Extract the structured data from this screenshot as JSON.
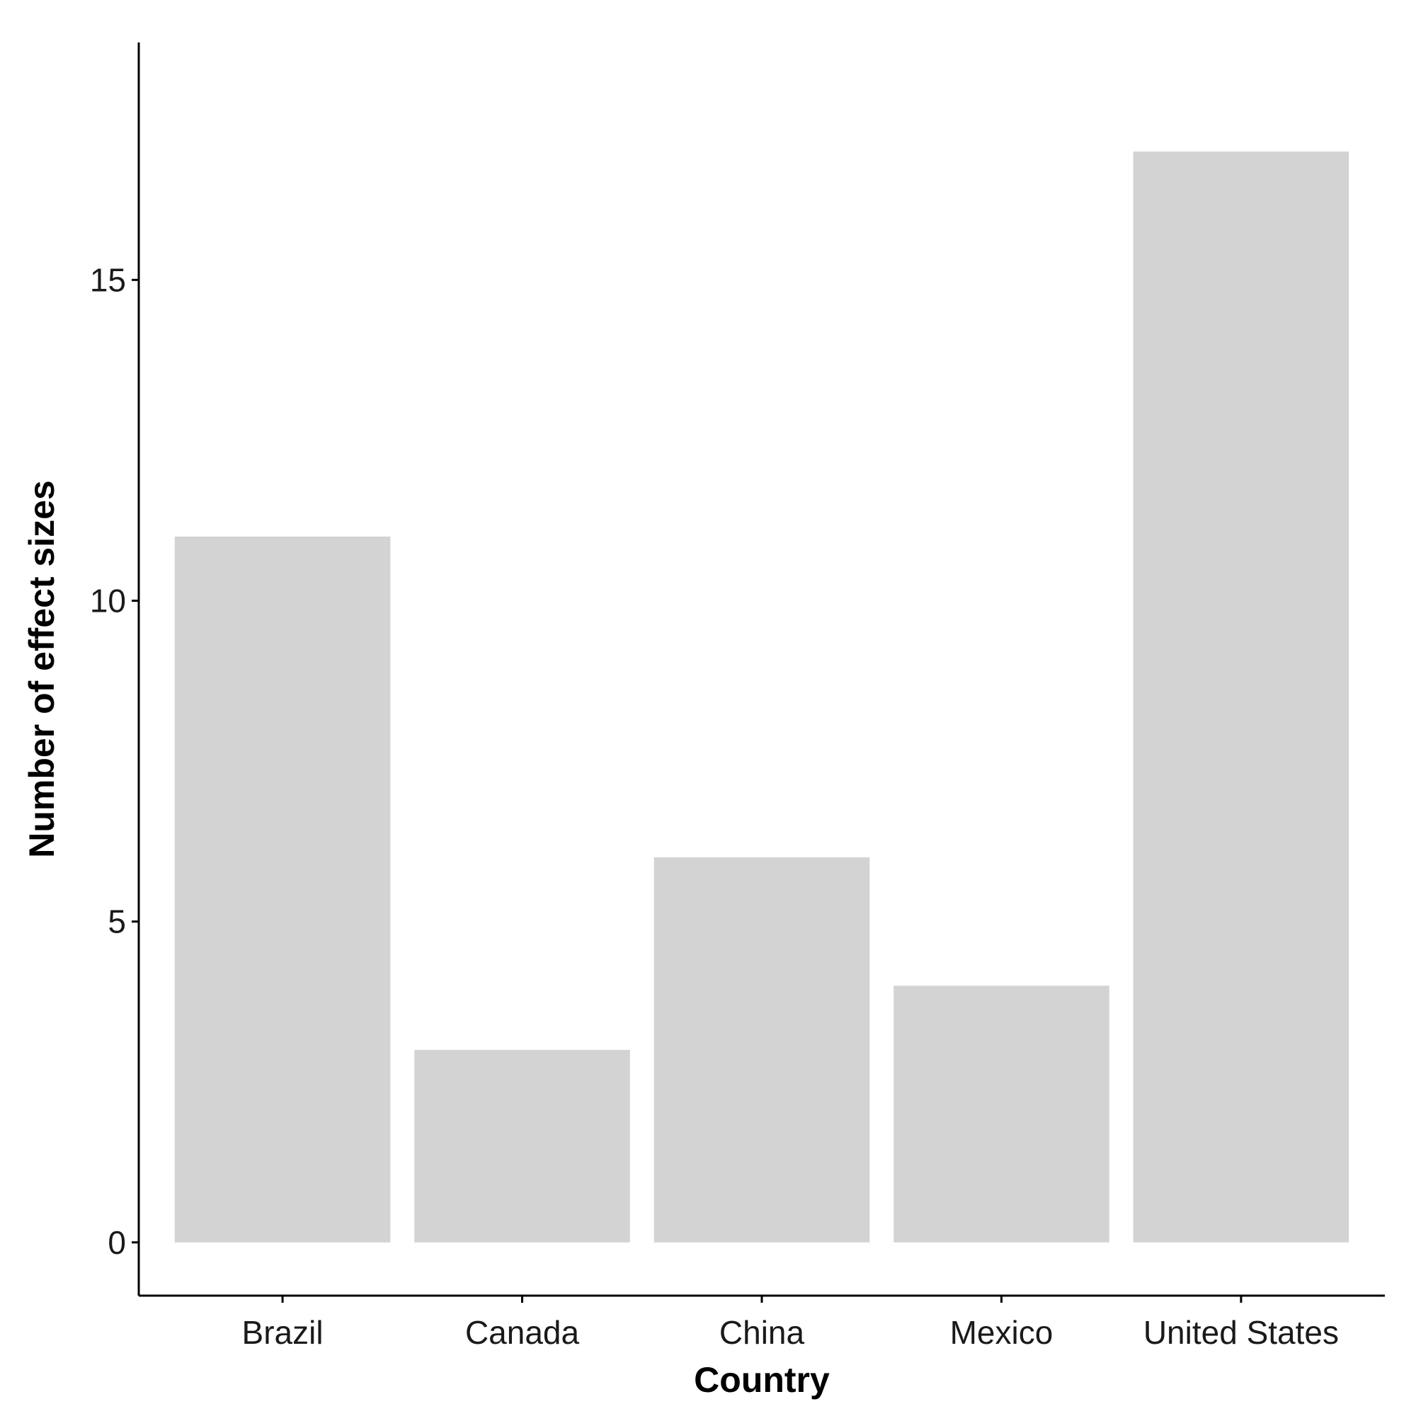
{
  "chart_data": {
    "type": "bar",
    "title": "",
    "xlabel": "Country",
    "ylabel": "Number of effect sizes",
    "categories": [
      "Brazil",
      "Canada",
      "China",
      "Mexico",
      "United States"
    ],
    "values": [
      11,
      3,
      6,
      4,
      17
    ],
    "ylim": [
      -0.83,
      18.7
    ],
    "yticks": [
      0,
      5,
      10,
      15
    ],
    "grid": false,
    "legend": "none",
    "bar_color": "#d3d3d3"
  }
}
